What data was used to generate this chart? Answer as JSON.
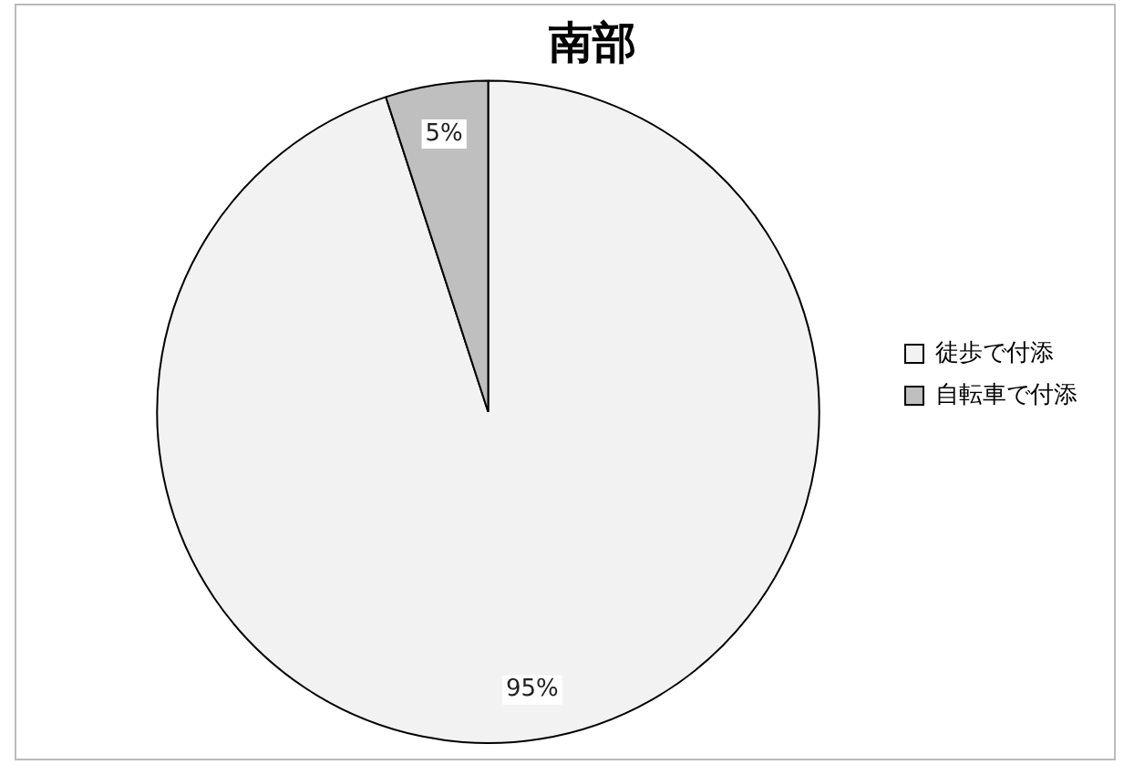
{
  "chart_data": {
    "type": "pie",
    "title": "南部",
    "categories": [
      "徒歩で付添",
      "自転車で付添"
    ],
    "values": [
      95,
      5
    ],
    "colors": [
      "#f2f2f2",
      "#bfbfbf"
    ],
    "value_labels": [
      "95%",
      "5%"
    ],
    "legend": "right"
  }
}
